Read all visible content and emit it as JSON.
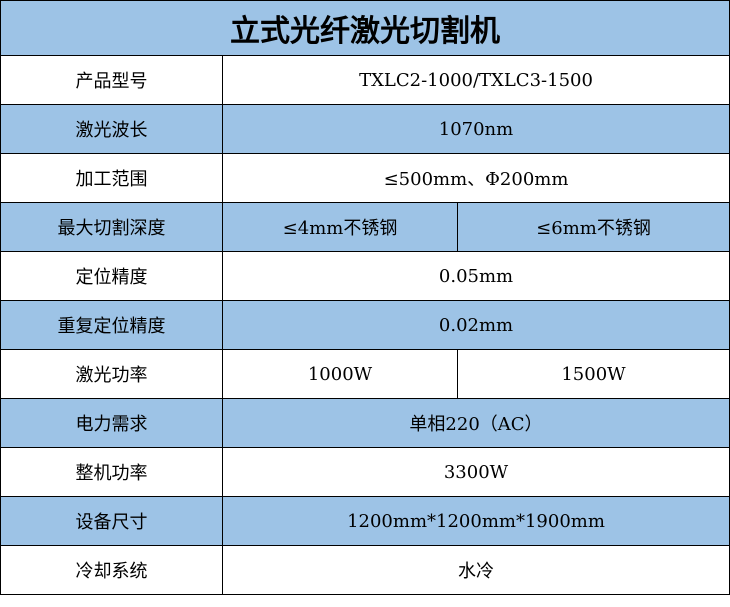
{
  "title": "立式光纤激光切割机",
  "colors": {
    "header_bg": "#9dc3e6",
    "border": "#000000"
  },
  "rows": [
    {
      "label": "产品型号",
      "values": [
        "TXLC2-1000/TXLC3-1500"
      ]
    },
    {
      "label": "激光波长",
      "values": [
        "1070nm"
      ]
    },
    {
      "label": "加工范围",
      "values": [
        "≤500mm、Φ200mm"
      ]
    },
    {
      "label": "最大切割深度",
      "values": [
        "≤4mm不锈钢",
        "≤6mm不锈钢"
      ]
    },
    {
      "label": "定位精度",
      "values": [
        "0.05mm"
      ]
    },
    {
      "label": "重复定位精度",
      "values": [
        "0.02mm"
      ]
    },
    {
      "label": "激光功率",
      "values": [
        "1000W",
        "1500W"
      ]
    },
    {
      "label": "电力需求",
      "values": [
        "单相220（AC）"
      ]
    },
    {
      "label": "整机功率",
      "values": [
        "3300W"
      ]
    },
    {
      "label": "设备尺寸",
      "values": [
        "1200mm*1200mm*1900mm"
      ]
    },
    {
      "label": "冷却系统",
      "values": [
        "水冷"
      ]
    }
  ]
}
